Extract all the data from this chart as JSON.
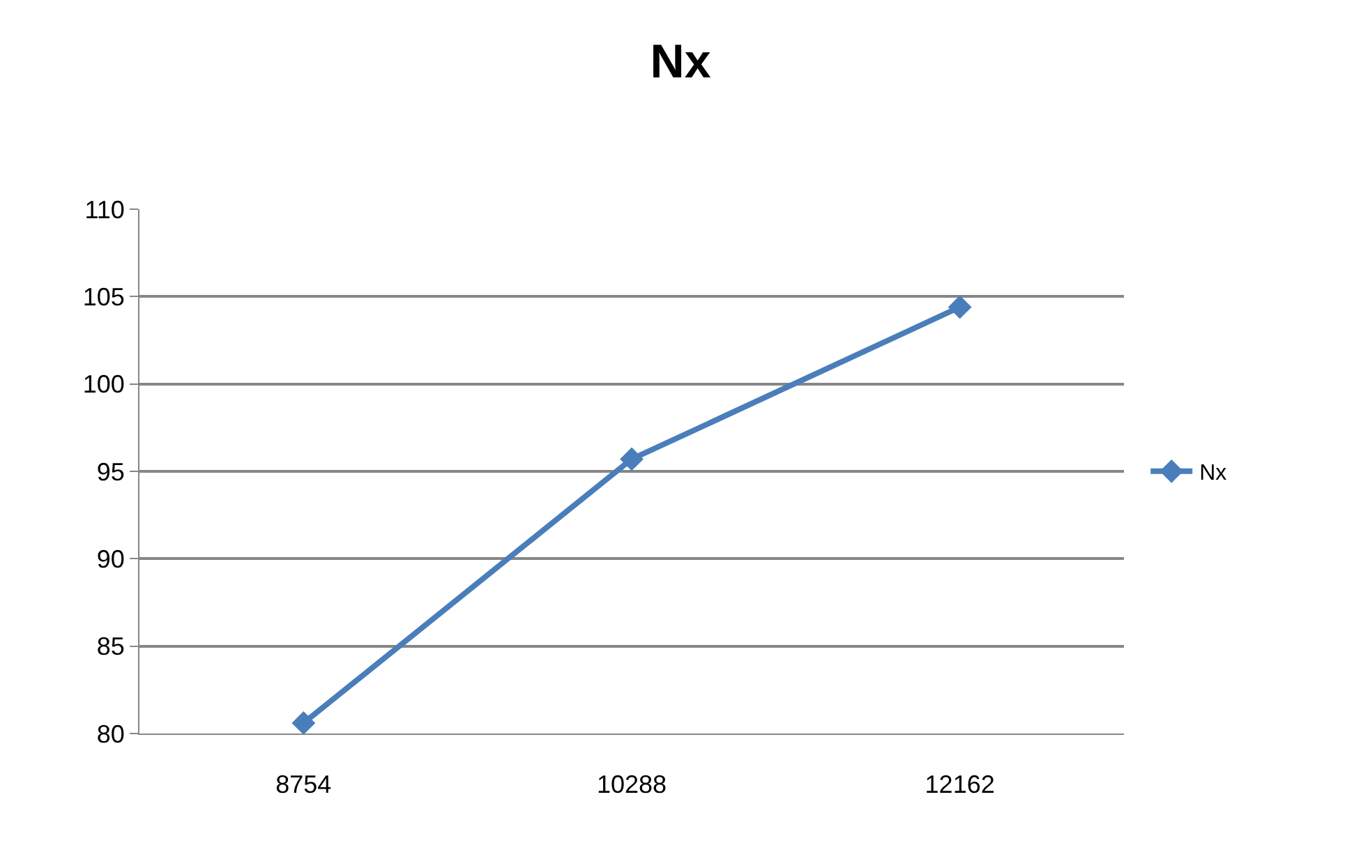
{
  "chart_data": {
    "type": "line",
    "title": "Nx",
    "categories": [
      "8754",
      "10288",
      "12162"
    ],
    "series": [
      {
        "name": "Nx",
        "color": "#4a7ebb",
        "values": [
          80.6,
          95.7,
          104.4
        ]
      }
    ],
    "ylim": [
      80,
      110
    ],
    "yticks": [
      80,
      85,
      90,
      95,
      100,
      105,
      110
    ],
    "grid": "y",
    "legend": "right",
    "marker": "diamond",
    "line_style": "solid"
  }
}
